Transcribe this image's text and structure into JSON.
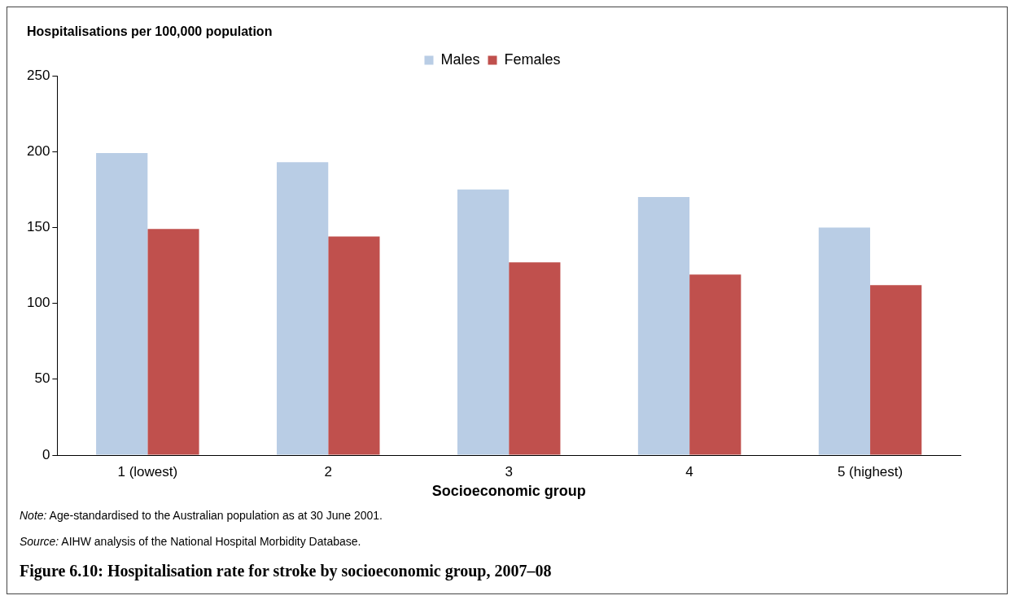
{
  "chart_data": {
    "type": "bar",
    "title": "Figure 6.10: Hospitalisation rate for stroke by socioeconomic group, 2007–08",
    "ylabel": "Hospitalisations per 100,000 population",
    "xlabel": "Socioeconomic group",
    "categories": [
      "1 (lowest)",
      "2",
      "3",
      "4",
      "5 (highest)"
    ],
    "series": [
      {
        "name": "Males",
        "color": "#b9cde5",
        "values": [
          199,
          193,
          175,
          170,
          150
        ]
      },
      {
        "name": "Females",
        "color": "#c0504d",
        "values": [
          149,
          144,
          127,
          119,
          112
        ]
      }
    ],
    "ylim": [
      0,
      250
    ],
    "yticks": [
      0,
      50,
      100,
      150,
      200,
      250
    ],
    "grid": false,
    "legend": "top",
    "annotations": [
      "Note: Age-standardised to the Australian population as at 30 June 2001.",
      "Source: AIHW analysis of the National Hospital Morbidity Database."
    ]
  }
}
